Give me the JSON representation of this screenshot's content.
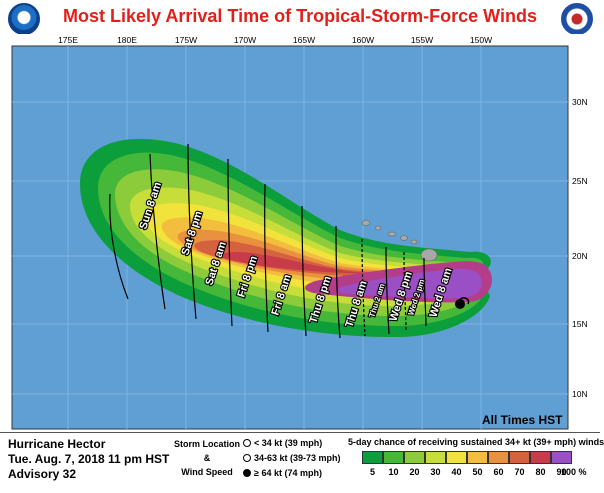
{
  "title": "Most Likely Arrival Time of Tropical-Storm-Force Winds",
  "colors": {
    "ocean": "#5f9fd4",
    "land": "#a8a8a8",
    "title": "#e0201b",
    "bands": [
      "#0d9e3c",
      "#45b83a",
      "#8ccc3a",
      "#c7dd3a",
      "#f1e23c",
      "#f3bd3e",
      "#e8923f",
      "#d6613f",
      "#c73b4a",
      "#b43d8a",
      "#9a4fc5"
    ]
  },
  "logos": [
    "noaa-logo",
    "nws-logo"
  ],
  "map": {
    "lon_labels": [
      "175E",
      "180E",
      "175W",
      "170W",
      "165W",
      "160W",
      "155W",
      "150W"
    ],
    "lat_labels": [
      "30N",
      "25N",
      "20N",
      "15N",
      "10N"
    ],
    "time_labels": [
      "Sun 8 am",
      "Sat 8 pm",
      "Sat 8 am",
      "Fri 8 pm",
      "Fri 8 am",
      "Thu 8 pm",
      "Thu 8 am",
      "Thu 2 am",
      "Wed 8 pm",
      "Wed 2 pm",
      "Wed 8 am"
    ],
    "note": "All Times HST"
  },
  "storm": {
    "name": "Hurricane Hector",
    "date": "Tue. Aug. 7, 2018   11 pm HST",
    "advisory": "Advisory 32"
  },
  "legend": {
    "storm_location": "Storm Location",
    "amp": "&",
    "wind_speed": "Wind Speed",
    "sym_low": "< 34 kt (39 mph)",
    "sym_mid": "34-63 kt (39-73 mph)",
    "sym_high": "≥ 64 kt (74 mph)",
    "prob_title": "5-day chance of receiving sustained 34+ kt (39+ mph) winds",
    "scale": [
      "5",
      "10",
      "20",
      "30",
      "40",
      "50",
      "60",
      "70",
      "80",
      "90",
      "100"
    ],
    "unit": "%"
  }
}
